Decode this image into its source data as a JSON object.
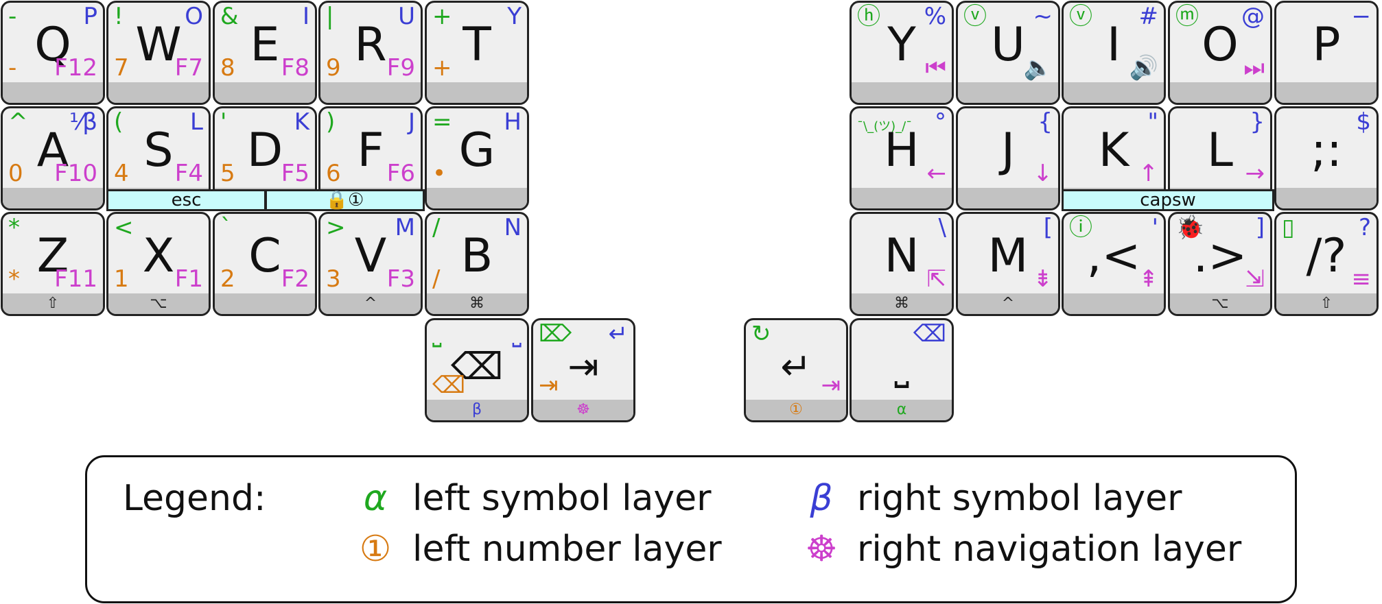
{
  "legend": {
    "title": "Legend:",
    "items": [
      {
        "icon": "α",
        "label": "left symbol layer",
        "color": "#1fa81f"
      },
      {
        "icon": "β",
        "label": "right symbol layer",
        "color": "#3a3ed4"
      },
      {
        "icon": "①",
        "label": "left number layer",
        "color": "#d77a12"
      },
      {
        "icon": "☸",
        "label": "right navigation layer",
        "color": "#cc3fcc"
      }
    ]
  },
  "keys": [
    {
      "id": "q",
      "main": "Q",
      "tl": "-",
      "tr": "P",
      "bl": "-",
      "br": "F12",
      "mod": ""
    },
    {
      "id": "w",
      "main": "W",
      "tl": "!",
      "tr": "O",
      "bl": "7",
      "br": "F7",
      "mod": ""
    },
    {
      "id": "e",
      "main": "E",
      "tl": "&",
      "tr": "I",
      "bl": "8",
      "br": "F8",
      "mod": ""
    },
    {
      "id": "r",
      "main": "R",
      "tl": "|",
      "tr": "U",
      "bl": "9",
      "br": "F9",
      "mod": ""
    },
    {
      "id": "t",
      "main": "T",
      "tl": "+",
      "tr": "Y",
      "bl": "+",
      "br": "",
      "mod": ""
    },
    {
      "id": "a",
      "main": "A",
      "tl": "^",
      "tr": "⅟β",
      "bl": "0",
      "br": "F10",
      "mod": ""
    },
    {
      "id": "s",
      "main": "S",
      "tl": "(",
      "tr": "L",
      "bl": "4",
      "br": "F4",
      "mod": ""
    },
    {
      "id": "d",
      "main": "D",
      "tl": "'",
      "tr": "K",
      "bl": "5",
      "br": "F5",
      "mod": ""
    },
    {
      "id": "f",
      "main": "F",
      "tl": ")",
      "tr": "J",
      "bl": "6",
      "br": "F6",
      "mod": ""
    },
    {
      "id": "g",
      "main": "G",
      "tl": "=",
      "tr": "H",
      "bl": "•",
      "br": "",
      "mod": ""
    },
    {
      "id": "z",
      "main": "Z",
      "tl": "*",
      "tr": "",
      "bl": "*",
      "br": "F11",
      "mod": "⇧"
    },
    {
      "id": "x",
      "main": "X",
      "tl": "<",
      "tr": "",
      "bl": "1",
      "br": "F1",
      "mod": "⌥"
    },
    {
      "id": "c",
      "main": "C",
      "tl": "`",
      "tr": "",
      "bl": "2",
      "br": "F2",
      "mod": ""
    },
    {
      "id": "v",
      "main": "V",
      "tl": ">",
      "tr": "M",
      "bl": "3",
      "br": "F3",
      "mod": "^"
    },
    {
      "id": "b",
      "main": "B",
      "tl": "/",
      "tr": "N",
      "bl": "/",
      "br": "",
      "mod": "⌘"
    },
    {
      "id": "bksp",
      "main": "⌫",
      "tl": "⎵",
      "tr": "⎵",
      "bl": "⌫",
      "br": "",
      "mod": "β"
    },
    {
      "id": "tab",
      "main": "⇥",
      "tl": "⌦",
      "tr": "↵",
      "bl": "⇥",
      "br": "",
      "mod": "☸"
    },
    {
      "id": "enter",
      "main": "↵",
      "tl": "↻",
      "tr": "",
      "bl": "",
      "br": "⇥",
      "mod": "①"
    },
    {
      "id": "space",
      "main": "⎵",
      "tl": "",
      "tr": "⌫",
      "bl": "",
      "br": "",
      "mod": "α"
    },
    {
      "id": "y",
      "main": "Y",
      "tl": "ⓗ",
      "tr": "%",
      "bl": "",
      "br": "⏮",
      "mod": ""
    },
    {
      "id": "u",
      "main": "U",
      "tl": "ⓥ",
      "tr": "~",
      "bl": "",
      "br": "🔈",
      "mod": ""
    },
    {
      "id": "i",
      "main": "I",
      "tl": "ⓥ",
      "tr": "#",
      "bl": "",
      "br": "🔊",
      "mod": ""
    },
    {
      "id": "o",
      "main": "O",
      "tl": "ⓜ",
      "tr": "@",
      "bl": "",
      "br": "⏭",
      "mod": ""
    },
    {
      "id": "p",
      "main": "P",
      "tl": "",
      "tr": "−",
      "bl": "",
      "br": "",
      "mod": ""
    },
    {
      "id": "h",
      "main": "H",
      "tl": "¯\\_(ツ)_/¯",
      "tr": "°",
      "bl": "",
      "br": "←",
      "mod": ""
    },
    {
      "id": "j",
      "main": "J",
      "tl": "",
      "tr": "{",
      "bl": "",
      "br": "↓",
      "mod": ""
    },
    {
      "id": "k",
      "main": "K",
      "tl": "",
      "tr": "\"",
      "bl": "",
      "br": "↑",
      "mod": ""
    },
    {
      "id": "l",
      "main": "L",
      "tl": "",
      "tr": "}",
      "bl": "",
      "br": "→",
      "mod": ""
    },
    {
      "id": "semicolon",
      "main": ";:",
      "tl": "",
      "tr": "$",
      "bl": "",
      "br": "",
      "mod": ""
    },
    {
      "id": "n",
      "main": "N",
      "tl": "",
      "tr": "\\",
      "bl": "",
      "br": "⇱",
      "mod": "⌘"
    },
    {
      "id": "m",
      "main": "M",
      "tl": "",
      "tr": "[",
      "bl": "",
      "br": "⇟",
      "mod": "^"
    },
    {
      "id": "comma",
      "main": ",<",
      "tl": "ⓘ",
      "tr": "'",
      "bl": "",
      "br": "⇞",
      "mod": ""
    },
    {
      "id": "period",
      "main": ".>",
      "tl": "🐞",
      "tr": "]",
      "bl": "",
      "br": "⇲",
      "mod": "⌥"
    },
    {
      "id": "slash",
      "main": "/?",
      "tl": "▯",
      "tr": "?",
      "bl": "",
      "br": "≡",
      "mod": "⇧"
    }
  ],
  "combos": [
    {
      "id": "esc",
      "label": "esc"
    },
    {
      "id": "lock",
      "label": "🔒①"
    },
    {
      "id": "capsw",
      "label": "capsw"
    }
  ]
}
